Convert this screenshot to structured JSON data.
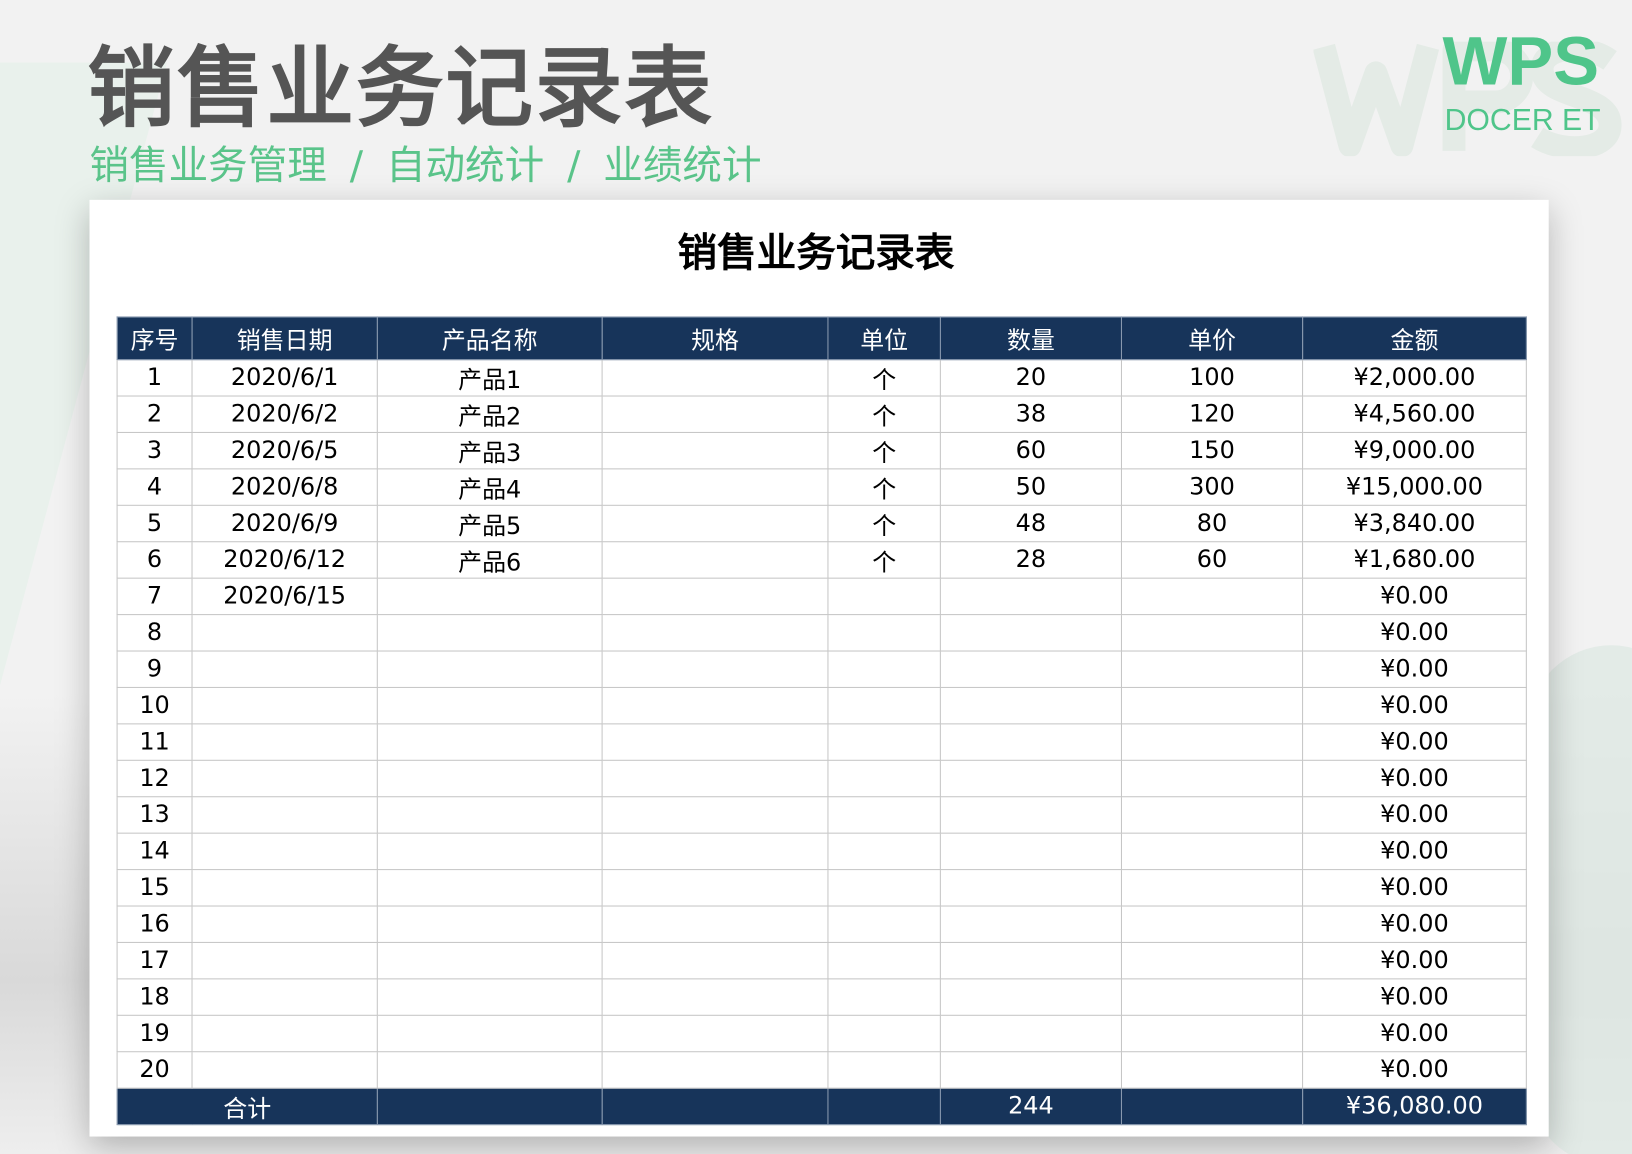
{
  "header": {
    "title": "销售业务记录表",
    "subtitle": [
      "销售业务管理",
      "自动统计",
      "业绩统计"
    ],
    "separator": "/",
    "logo": "WPS",
    "logo_sub": "DOCER ET",
    "brand_color": "#4fc58a"
  },
  "sheet": {
    "title": "销售业务记录表",
    "columns": [
      "序号",
      "销售日期",
      "产品名称",
      "规格",
      "单位",
      "数量",
      "单价",
      "金额"
    ],
    "rows": [
      [
        "1",
        "2020/6/1",
        "产品1",
        "",
        "个",
        "20",
        "100",
        "¥2,000.00"
      ],
      [
        "2",
        "2020/6/2",
        "产品2",
        "",
        "个",
        "38",
        "120",
        "¥4,560.00"
      ],
      [
        "3",
        "2020/6/5",
        "产品3",
        "",
        "个",
        "60",
        "150",
        "¥9,000.00"
      ],
      [
        "4",
        "2020/6/8",
        "产品4",
        "",
        "个",
        "50",
        "300",
        "¥15,000.00"
      ],
      [
        "5",
        "2020/6/9",
        "产品5",
        "",
        "个",
        "48",
        "80",
        "¥3,840.00"
      ],
      [
        "6",
        "2020/6/12",
        "产品6",
        "",
        "个",
        "28",
        "60",
        "¥1,680.00"
      ],
      [
        "7",
        "2020/6/15",
        "",
        "",
        "",
        "",
        "",
        "¥0.00"
      ],
      [
        "8",
        "",
        "",
        "",
        "",
        "",
        "",
        "¥0.00"
      ],
      [
        "9",
        "",
        "",
        "",
        "",
        "",
        "",
        "¥0.00"
      ],
      [
        "10",
        "",
        "",
        "",
        "",
        "",
        "",
        "¥0.00"
      ],
      [
        "11",
        "",
        "",
        "",
        "",
        "",
        "",
        "¥0.00"
      ],
      [
        "12",
        "",
        "",
        "",
        "",
        "",
        "",
        "¥0.00"
      ],
      [
        "13",
        "",
        "",
        "",
        "",
        "",
        "",
        "¥0.00"
      ],
      [
        "14",
        "",
        "",
        "",
        "",
        "",
        "",
        "¥0.00"
      ],
      [
        "15",
        "",
        "",
        "",
        "",
        "",
        "",
        "¥0.00"
      ],
      [
        "16",
        "",
        "",
        "",
        "",
        "",
        "",
        "¥0.00"
      ],
      [
        "17",
        "",
        "",
        "",
        "",
        "",
        "",
        "¥0.00"
      ],
      [
        "18",
        "",
        "",
        "",
        "",
        "",
        "",
        "¥0.00"
      ],
      [
        "19",
        "",
        "",
        "",
        "",
        "",
        "",
        "¥0.00"
      ],
      [
        "20",
        "",
        "",
        "",
        "",
        "",
        "",
        "¥0.00"
      ]
    ],
    "total": {
      "label": "合计",
      "quantity": "244",
      "amount": "¥36,080.00"
    },
    "header_color": "#17345a"
  }
}
